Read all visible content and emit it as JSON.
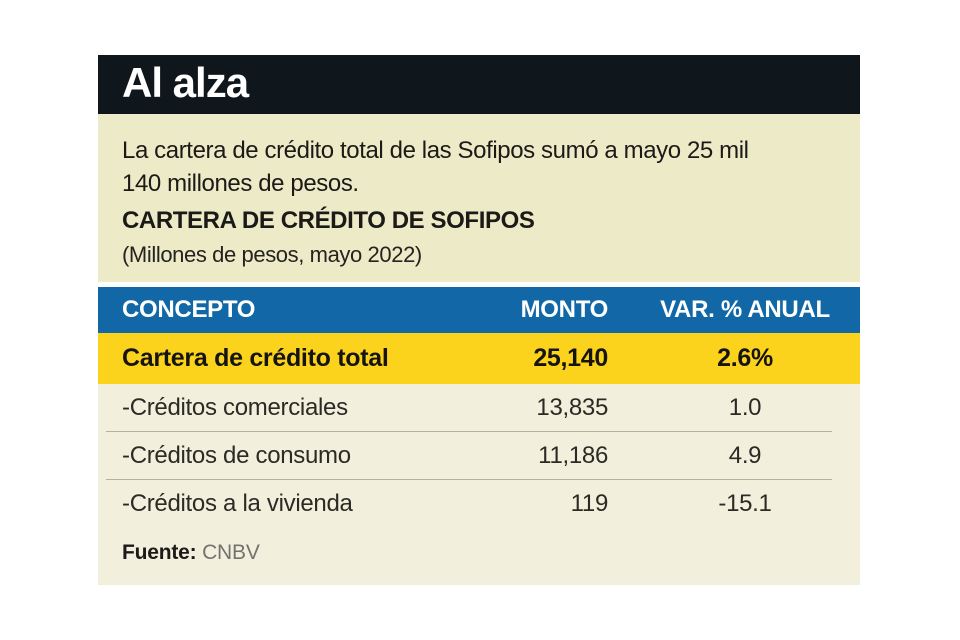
{
  "panel": {
    "title": "Al alza",
    "intro_line1": "La cartera de crédito total de las Sofipos sumó a mayo 25 mil",
    "intro_line2": "140 millones de pesos.",
    "chart_title": "CARTERA DE CRÉDITO DE SOFIPOS",
    "chart_subtitle": "(Millones de pesos, mayo 2022)",
    "source_label": "Fuente:",
    "source_value": "CNBV"
  },
  "table": {
    "headers": [
      "CONCEPTO",
      "MONTO",
      "VAR. % ANUAL"
    ],
    "highlight_row": {
      "concepto": "Cartera de crédito total",
      "monto": "25,140",
      "var": "2.6%"
    },
    "rows": [
      {
        "concepto": "-Créditos comerciales",
        "monto": "13,835",
        "var": "1.0"
      },
      {
        "concepto": "-Créditos de consumo",
        "monto": "11,186",
        "var": "4.9"
      },
      {
        "concepto": "-Créditos a la vivienda",
        "monto": "119",
        "var": "-15.1"
      }
    ]
  },
  "colors": {
    "title_bar_black": "#10171C",
    "intro_cream": "#EDEAC8",
    "rows_cream": "#F2F0DD",
    "header_blue": "#1268A7",
    "highlight_yellow": "#FCD31C",
    "separator_gray": "#B3B1A4",
    "text_dark": "#1B1A17",
    "source_gray": "#73726E"
  },
  "chart_data": {
    "type": "table",
    "title": "CARTERA DE CRÉDITO DE SOFIPOS",
    "subtitle": "(Millones de pesos, mayo 2022)",
    "headline": "Al alza",
    "description": "La cartera de crédito total de las Sofipos sumó a mayo 25 mil 140 millones de pesos.",
    "columns": [
      "CONCEPTO",
      "MONTO",
      "VAR. % ANUAL"
    ],
    "rows": [
      [
        "Cartera de crédito total",
        25140,
        2.6
      ],
      [
        "-Créditos comerciales",
        13835,
        1.0
      ],
      [
        "-Créditos de consumo",
        11186,
        4.9
      ],
      [
        "-Créditos a la vivienda",
        119,
        -15.1
      ]
    ],
    "units": "Millones de pesos",
    "period": "mayo 2022",
    "source": "CNBV"
  }
}
